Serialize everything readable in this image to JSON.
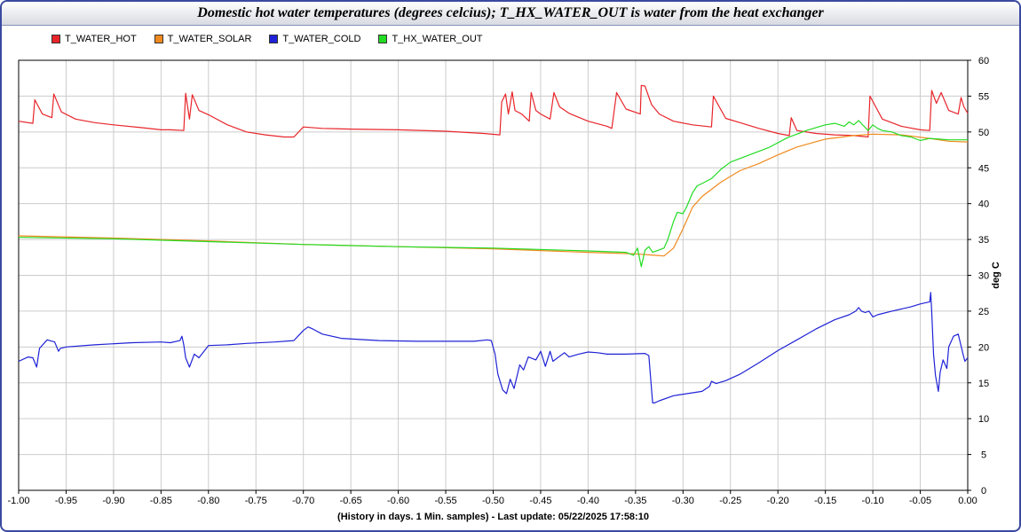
{
  "window": {
    "title": "Domestic hot water temperatures (degrees celcius); T_HX_WATER_OUT is water from the heat exchanger"
  },
  "chart_data": {
    "type": "line",
    "title": "Domestic hot water temperatures (degrees celcius); T_HX_WATER_OUT is water from the heat exchanger",
    "xlabel": "(History in days. 1 Min. samples) - Last update: 05/22/2025 17:58:10",
    "ylabel": "deg C",
    "xlim": [
      -1.0,
      0.0
    ],
    "ylim": [
      0,
      60
    ],
    "grid": true,
    "legend_position": "top-left",
    "xticks": [
      "-1.00",
      "-0.95",
      "-0.90",
      "-0.85",
      "-0.80",
      "-0.75",
      "-0.70",
      "-0.65",
      "-0.60",
      "-0.55",
      "-0.50",
      "-0.45",
      "-0.40",
      "-0.35",
      "-0.30",
      "-0.25",
      "-0.20",
      "-0.15",
      "-0.10",
      "-0.05",
      "0.00"
    ],
    "yticks": [
      "0",
      "5",
      "10",
      "15",
      "20",
      "25",
      "30",
      "35",
      "40",
      "45",
      "50",
      "55",
      "60"
    ],
    "series": [
      {
        "name": "T_WATER_HOT",
        "color": "#e8252a",
        "x": [
          -1.0,
          -0.985,
          -0.983,
          -0.975,
          -0.965,
          -0.963,
          -0.955,
          -0.94,
          -0.92,
          -0.9,
          -0.87,
          -0.85,
          -0.84,
          -0.826,
          -0.824,
          -0.82,
          -0.817,
          -0.81,
          -0.8,
          -0.78,
          -0.76,
          -0.74,
          -0.72,
          -0.71,
          -0.7,
          -0.68,
          -0.65,
          -0.6,
          -0.55,
          -0.51,
          -0.493,
          -0.491,
          -0.487,
          -0.484,
          -0.48,
          -0.477,
          -0.47,
          -0.462,
          -0.46,
          -0.455,
          -0.45,
          -0.44,
          -0.436,
          -0.43,
          -0.42,
          -0.4,
          -0.38,
          -0.375,
          -0.37,
          -0.36,
          -0.345,
          -0.344,
          -0.34,
          -0.335,
          -0.333,
          -0.325,
          -0.31,
          -0.29,
          -0.27,
          -0.268,
          -0.255,
          -0.24,
          -0.22,
          -0.2,
          -0.188,
          -0.186,
          -0.18,
          -0.16,
          -0.14,
          -0.12,
          -0.105,
          -0.103,
          -0.09,
          -0.07,
          -0.05,
          -0.04,
          -0.038,
          -0.033,
          -0.028,
          -0.02,
          -0.01,
          -0.007,
          -0.004,
          0.0
        ],
        "values": [
          51.5,
          51.2,
          54.5,
          52.5,
          52.0,
          55.3,
          52.8,
          51.8,
          51.3,
          51.0,
          50.6,
          50.3,
          50.3,
          50.2,
          55.4,
          51.8,
          55.2,
          53.0,
          52.4,
          51.0,
          50.0,
          49.6,
          49.3,
          49.3,
          50.7,
          50.5,
          50.4,
          50.3,
          50.1,
          49.8,
          49.6,
          54.2,
          55.3,
          52.5,
          55.6,
          53.0,
          52.5,
          51.5,
          55.5,
          53.0,
          52.5,
          51.8,
          55.5,
          53.5,
          52.6,
          51.5,
          50.8,
          50.5,
          55.5,
          53.2,
          52.5,
          56.5,
          56.4,
          54.5,
          53.8,
          52.5,
          51.5,
          51.0,
          50.7,
          55.0,
          51.9,
          51.3,
          50.5,
          49.8,
          49.5,
          52.0,
          50.2,
          49.8,
          49.6,
          49.5,
          49.3,
          55.0,
          51.8,
          50.8,
          50.3,
          50.2,
          55.8,
          54.0,
          55.5,
          53.0,
          52.5,
          54.8,
          53.5,
          52.6
        ]
      },
      {
        "name": "T_WATER_SOLAR",
        "color": "#f08a1e",
        "x": [
          -1.0,
          -0.9,
          -0.8,
          -0.7,
          -0.6,
          -0.5,
          -0.4,
          -0.35,
          -0.33,
          -0.32,
          -0.31,
          -0.3,
          -0.29,
          -0.28,
          -0.27,
          -0.26,
          -0.25,
          -0.24,
          -0.22,
          -0.2,
          -0.18,
          -0.15,
          -0.12,
          -0.1,
          -0.07,
          -0.04,
          -0.02,
          0.0
        ],
        "values": [
          35.5,
          35.2,
          34.8,
          34.3,
          34.0,
          33.7,
          33.2,
          33.0,
          32.8,
          32.7,
          33.8,
          36.5,
          39.5,
          41.0,
          42.0,
          43.0,
          43.8,
          44.6,
          45.6,
          46.8,
          47.9,
          49.0,
          49.5,
          49.7,
          49.6,
          49.1,
          48.7,
          48.6
        ]
      },
      {
        "name": "T_WATER_COLD",
        "color": "#1f22d6",
        "x": [
          -1.0,
          -0.99,
          -0.985,
          -0.981,
          -0.978,
          -0.97,
          -0.962,
          -0.958,
          -0.956,
          -0.95,
          -0.92,
          -0.88,
          -0.85,
          -0.84,
          -0.83,
          -0.828,
          -0.826,
          -0.824,
          -0.82,
          -0.815,
          -0.81,
          -0.8,
          -0.78,
          -0.76,
          -0.73,
          -0.71,
          -0.7,
          -0.695,
          -0.69,
          -0.68,
          -0.66,
          -0.62,
          -0.58,
          -0.55,
          -0.52,
          -0.506,
          -0.502,
          -0.498,
          -0.495,
          -0.49,
          -0.486,
          -0.482,
          -0.478,
          -0.472,
          -0.468,
          -0.463,
          -0.455,
          -0.45,
          -0.445,
          -0.44,
          -0.437,
          -0.43,
          -0.425,
          -0.42,
          -0.41,
          -0.4,
          -0.39,
          -0.38,
          -0.36,
          -0.34,
          -0.336,
          -0.332,
          -0.33,
          -0.325,
          -0.31,
          -0.28,
          -0.272,
          -0.27,
          -0.265,
          -0.255,
          -0.24,
          -0.22,
          -0.2,
          -0.18,
          -0.16,
          -0.14,
          -0.125,
          -0.118,
          -0.115,
          -0.112,
          -0.108,
          -0.104,
          -0.1,
          -0.095,
          -0.08,
          -0.06,
          -0.05,
          -0.04,
          -0.039,
          -0.038,
          -0.036,
          -0.034,
          -0.031,
          -0.029,
          -0.026,
          -0.022,
          -0.02,
          -0.015,
          -0.01,
          -0.005,
          -0.003,
          0.0
        ],
        "values": [
          18.0,
          18.6,
          18.5,
          17.2,
          19.8,
          21.0,
          20.7,
          19.4,
          19.8,
          20.0,
          20.3,
          20.6,
          20.7,
          20.6,
          20.9,
          21.5,
          20.3,
          18.5,
          17.2,
          19.0,
          18.5,
          20.2,
          20.3,
          20.5,
          20.7,
          20.9,
          22.3,
          22.8,
          22.5,
          21.8,
          21.2,
          20.9,
          20.8,
          20.8,
          20.8,
          21.0,
          20.9,
          19.0,
          16.2,
          14.0,
          13.5,
          15.5,
          14.2,
          17.5,
          16.8,
          18.6,
          18.2,
          19.4,
          17.3,
          19.4,
          18.0,
          18.7,
          19.2,
          18.6,
          19.0,
          19.3,
          19.2,
          19.0,
          19.0,
          19.1,
          18.8,
          12.2,
          12.2,
          12.5,
          13.2,
          13.8,
          14.5,
          15.2,
          14.9,
          15.3,
          16.2,
          17.8,
          19.5,
          21.0,
          22.5,
          23.8,
          24.5,
          25.0,
          25.5,
          25.0,
          24.8,
          25.0,
          24.2,
          24.5,
          25.0,
          25.6,
          26.0,
          26.3,
          27.6,
          25.0,
          19.0,
          16.0,
          13.8,
          16.5,
          18.2,
          17.0,
          20.0,
          21.5,
          21.8,
          19.0,
          18.0,
          18.5
        ]
      },
      {
        "name": "T_HX_WATER_OUT",
        "color": "#22dc22",
        "x": [
          -1.0,
          -0.9,
          -0.8,
          -0.7,
          -0.6,
          -0.5,
          -0.4,
          -0.36,
          -0.352,
          -0.348,
          -0.344,
          -0.34,
          -0.336,
          -0.332,
          -0.326,
          -0.32,
          -0.316,
          -0.31,
          -0.306,
          -0.3,
          -0.296,
          -0.29,
          -0.285,
          -0.28,
          -0.27,
          -0.26,
          -0.25,
          -0.23,
          -0.21,
          -0.19,
          -0.17,
          -0.15,
          -0.14,
          -0.13,
          -0.125,
          -0.12,
          -0.115,
          -0.11,
          -0.105,
          -0.1,
          -0.095,
          -0.09,
          -0.08,
          -0.07,
          -0.06,
          -0.05,
          -0.04,
          -0.03,
          -0.02,
          0.0
        ],
        "values": [
          35.3,
          35.1,
          34.7,
          34.3,
          34.0,
          33.8,
          33.4,
          33.2,
          32.8,
          33.8,
          31.2,
          33.5,
          34.0,
          33.2,
          33.5,
          33.8,
          35.0,
          37.5,
          38.8,
          38.6,
          39.6,
          41.5,
          42.5,
          42.8,
          43.5,
          44.8,
          45.8,
          46.8,
          47.8,
          49.2,
          50.2,
          51.0,
          51.2,
          50.8,
          51.4,
          51.0,
          51.6,
          50.9,
          50.2,
          51.0,
          50.5,
          50.2,
          50.0,
          49.5,
          49.3,
          48.8,
          49.1,
          49.0,
          48.9,
          48.9
        ]
      }
    ]
  }
}
